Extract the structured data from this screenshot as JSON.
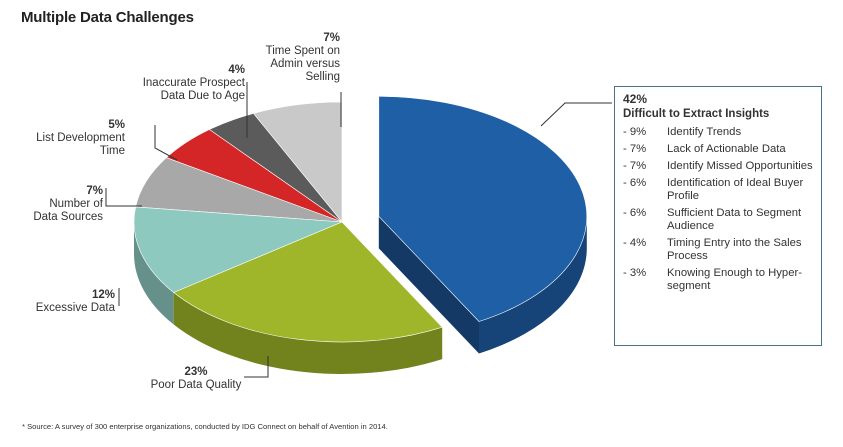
{
  "title": "Multiple Data Challenges",
  "chart_data": {
    "type": "pie",
    "style": "3d-exploded",
    "slices": [
      {
        "label": "Difficult to Extract Insights",
        "value": 42,
        "display": "42%",
        "color": "#1f5fa6"
      },
      {
        "label": "Poor Data Quality",
        "value": 23,
        "display": "23%",
        "color": "#9fb62a"
      },
      {
        "label": "Excessive Data",
        "value": 12,
        "display": "12%",
        "color": "#8ec9c0"
      },
      {
        "label": "Number of Data Sources",
        "value": 7,
        "display": "7%",
        "color": "#a8a8a8"
      },
      {
        "label": "List Development Time",
        "value": 5,
        "display": "5%",
        "color": "#d42626"
      },
      {
        "label": "Inaccurate Prospect Data Due to Age",
        "value": 4,
        "display": "4%",
        "color": "#5b5b5b"
      },
      {
        "label": "Time Spent on Admin versus Selling",
        "value": 7,
        "display": "7%",
        "color": "#c9c9c9"
      }
    ]
  },
  "labels": {
    "admin": {
      "pct": "7%",
      "l1": "Time Spent on",
      "l2": "Admin versus",
      "l3": "Selling"
    },
    "inaccurate": {
      "pct": "4%",
      "l1": "Inaccurate Prospect",
      "l2": "Data Due to Age"
    },
    "listdev": {
      "pct": "5%",
      "l1": "List Development",
      "l2": "Time"
    },
    "sources": {
      "pct": "7%",
      "l1": "Number of",
      "l2": "Data Sources"
    },
    "excessive": {
      "pct": "12%",
      "l1": "Excessive Data"
    },
    "poor": {
      "pct": "23%",
      "l1": "Poor Data Quality"
    }
  },
  "breakdown": {
    "pct": "42%",
    "heading": "Difficult to Extract Insights",
    "items": [
      {
        "value": "- 9%",
        "name": "Identify Trends"
      },
      {
        "value": "- 7%",
        "name": "Lack of Actionable Data"
      },
      {
        "value": "- 7%",
        "name": "Identify Missed Opportunities"
      },
      {
        "value": "- 6%",
        "name": "Identification of Ideal Buyer Profile"
      },
      {
        "value": "- 6%",
        "name": "Sufficient Data to Segment Audience"
      },
      {
        "value": "- 4%",
        "name": "Timing Entry into the Sales Process"
      },
      {
        "value": "- 3%",
        "name": "Knowing Enough to Hyper-segment"
      }
    ]
  },
  "footnote": "* Source: A survey of 300 enterprise organizations, conducted by IDG Connect on behalf of Avention in 2014."
}
